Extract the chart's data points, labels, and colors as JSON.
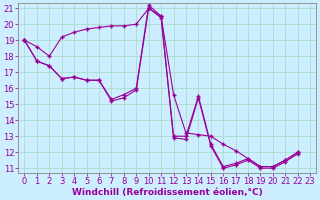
{
  "xlabel": "Windchill (Refroidissement éolien,°C)",
  "background_color": "#cceeff",
  "grid_color": "#aaddcc",
  "line_color": "#990099",
  "xlim_min": -0.5,
  "xlim_max": 23.5,
  "ylim_min": 10.7,
  "ylim_max": 21.3,
  "xticks": [
    0,
    1,
    2,
    3,
    4,
    5,
    6,
    7,
    8,
    9,
    10,
    11,
    12,
    13,
    14,
    15,
    16,
    17,
    18,
    19,
    20,
    21,
    22,
    23
  ],
  "yticks": [
    11,
    12,
    13,
    14,
    15,
    16,
    17,
    18,
    19,
    20,
    21
  ],
  "line1_x": [
    0,
    1,
    2,
    3,
    4,
    5,
    6,
    7,
    8,
    9,
    10,
    11,
    12,
    13,
    14,
    15,
    16,
    17,
    18,
    19,
    20,
    21,
    22
  ],
  "line1_y": [
    19.0,
    18.6,
    18.0,
    19.2,
    19.5,
    19.7,
    19.8,
    19.9,
    19.9,
    20.0,
    21.0,
    20.5,
    15.6,
    13.2,
    13.1,
    13.0,
    12.5,
    12.1,
    11.6,
    11.1,
    11.1,
    11.5,
    12.0
  ],
  "line2_x": [
    0,
    1,
    2,
    3,
    4,
    5,
    6,
    7,
    8,
    9,
    10,
    11,
    12,
    13,
    14,
    15,
    16,
    17,
    18,
    19,
    20,
    21,
    22
  ],
  "line2_y": [
    19.0,
    17.7,
    17.4,
    16.6,
    16.7,
    16.5,
    16.5,
    15.3,
    15.6,
    16.0,
    21.2,
    20.5,
    13.0,
    13.0,
    15.5,
    12.5,
    11.1,
    11.3,
    11.6,
    11.1,
    11.1,
    11.5,
    12.0
  ],
  "line3_x": [
    0,
    1,
    2,
    3,
    4,
    5,
    6,
    7,
    8,
    9,
    10,
    11,
    12,
    13,
    14,
    15,
    16,
    17,
    18,
    19,
    20,
    21,
    22
  ],
  "line3_y": [
    19.0,
    17.7,
    17.4,
    16.6,
    16.7,
    16.5,
    16.5,
    15.2,
    15.4,
    15.9,
    21.0,
    20.4,
    12.9,
    12.8,
    15.4,
    12.4,
    11.0,
    11.2,
    11.5,
    11.0,
    11.0,
    11.4,
    11.9
  ],
  "tick_fontsize": 6,
  "label_fontsize": 6.5
}
